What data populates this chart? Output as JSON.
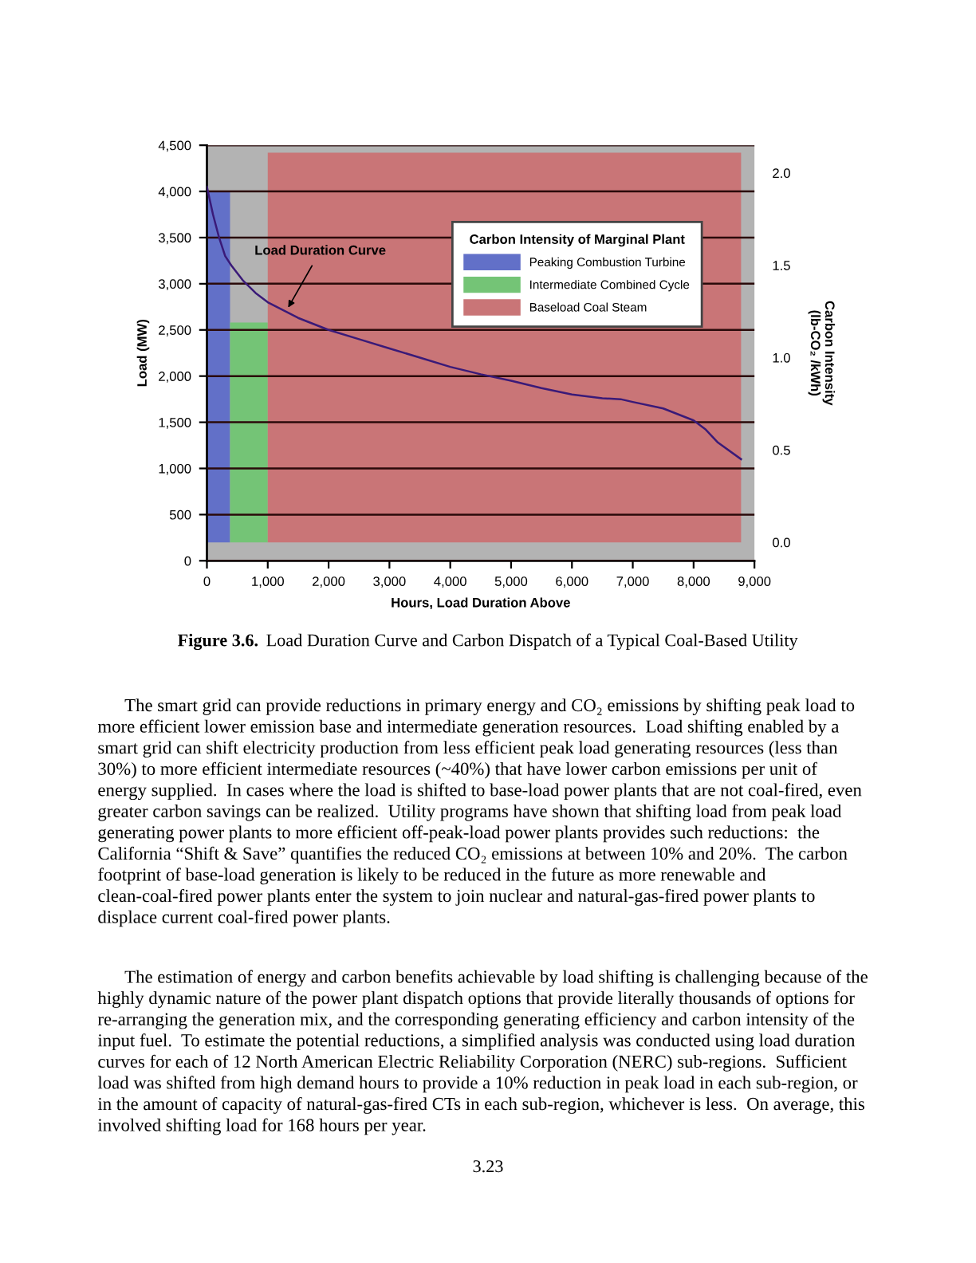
{
  "chart_data": {
    "type": "line",
    "xlabel": "Hours, Load Duration Above",
    "ylabel": "Load (MW)",
    "y2label": "Carbon Intensity\n(lb-CO₂ /kWh)",
    "legend_title": "Carbon Intensity of Marginal Plant",
    "xlim": [
      0,
      9000
    ],
    "xticks": [
      {
        "value": 0,
        "label": "0"
      },
      {
        "value": 1000,
        "label": "1,000"
      },
      {
        "value": 2000,
        "label": "2,000"
      },
      {
        "value": 3000,
        "label": "3,000"
      },
      {
        "value": 4000,
        "label": "4,000"
      },
      {
        "value": 5000,
        "label": "5,000"
      },
      {
        "value": 6000,
        "label": "6,000"
      },
      {
        "value": 7000,
        "label": "7,000"
      },
      {
        "value": 8000,
        "label": "8,000"
      },
      {
        "value": 9000,
        "label": "9,000"
      }
    ],
    "ylim": [
      0,
      4500
    ],
    "yticks": [
      0,
      500,
      {
        "value": 1000,
        "label": "1,000"
      },
      {
        "value": 1500,
        "label": "1,500"
      },
      {
        "value": 2000,
        "label": "2,000"
      },
      {
        "value": 2500,
        "label": "2,500"
      },
      {
        "value": 3000,
        "label": "3,000"
      },
      {
        "value": 3500,
        "label": "3,500"
      },
      {
        "value": 4000,
        "label": "4,000"
      },
      {
        "value": 4500,
        "label": "4,500"
      }
    ],
    "y2lim": [
      -0.1,
      2.15
    ],
    "y2ticks": [
      {
        "value": 0,
        "label": "0.0"
      },
      {
        "value": 0.5,
        "label": "0.5"
      },
      {
        "value": 1,
        "label": "1.0"
      },
      {
        "value": 1.5,
        "label": "1.5"
      },
      {
        "value": 2,
        "label": "2.0"
      }
    ],
    "grid": "y",
    "legend": "top right",
    "series": [
      {
        "name": "Peaking Combustion Turbine",
        "type": "area",
        "axis": "y2",
        "color": "#6270c8",
        "x": [
          0,
          380
        ],
        "values": [
          1.9,
          1.9
        ]
      },
      {
        "name": "Intermediate Combined Cycle",
        "type": "area",
        "axis": "y2",
        "color": "#74c476",
        "x": [
          380,
          1000
        ],
        "values": [
          1.19,
          1.19
        ]
      },
      {
        "name": "Baseload Coal Steam",
        "type": "area",
        "axis": "y2",
        "color": "#c97577",
        "x": [
          1000,
          8780
        ],
        "values": [
          2.11,
          2.11
        ]
      },
      {
        "color": "#3a1a78",
        "x": [
          0,
          100,
          200,
          300,
          400,
          600,
          800,
          1000,
          1500,
          2000,
          2500,
          3000,
          3500,
          4000,
          4500,
          5000,
          5500,
          6000,
          6500,
          6800,
          7000,
          7500,
          8000,
          8200,
          8400,
          8780
        ],
        "values": [
          4050,
          3750,
          3500,
          3300,
          3200,
          3030,
          2900,
          2800,
          2630,
          2500,
          2400,
          2300,
          2200,
          2100,
          2020,
          1950,
          1870,
          1800,
          1760,
          1750,
          1720,
          1650,
          1520,
          1420,
          1280,
          1100
        ]
      }
    ],
    "annotations": [
      {
        "text": "Load Duration Curve",
        "x": 1300,
        "y": 2700
      },
      "Figure 3.6.",
      "Load Duration Curve and Carbon Dispatch of a Typical Coal-Based Utility",
      "The smart grid can provide reductions in primary energy and CO₂ emissions by shifting peak load to more efficient lower emission base and intermediate generation resources.  Load shifting enabled by a smart grid can shift electricity production from less efficient peak load generating resources (less than 30%) to more efficient intermediate resources (~40%) that have lower carbon emissions per unit of energy supplied.  In cases where the load is shifted to base-load power plants that are not coal-fired, even greater carbon savings can be realized.  Utility programs have shown that shifting load from peak load generating power plants to more efficient off-peak-load power plants provides such reductions:  the California “Shift & Save” quantifies the reduced CO₂ emissions at between 10% and 20%.  The carbon footprint of base-load generation is likely to be reduced in the future as more renewable and clean-coal-fired power plants enter the system to join nuclear and natural-gas-fired power plants to displace current coal-fired power plants.",
      "The estimation of energy and carbon benefits achievable by load shifting is challenging because of the highly dynamic nature of the power plant dispatch options that provide literally thousands of options for re-arranging the generation mix, and the corresponding generating efficiency and carbon intensity of the input fuel.  To estimate the potential reductions, a simplified analysis was conducted using load duration curves for each of 12 North American Electric Reliability Corporation (NERC) sub-regions.  Sufficient load was shifted from high demand hours to provide a 10% reduction in peak load in each sub-region, or in the amount of capacity of natural-gas-fired CTs in each sub-region, whichever is less.  On average, this involved shifting load for 168 hours per year.",
      "3.23"
    ]
  }
}
